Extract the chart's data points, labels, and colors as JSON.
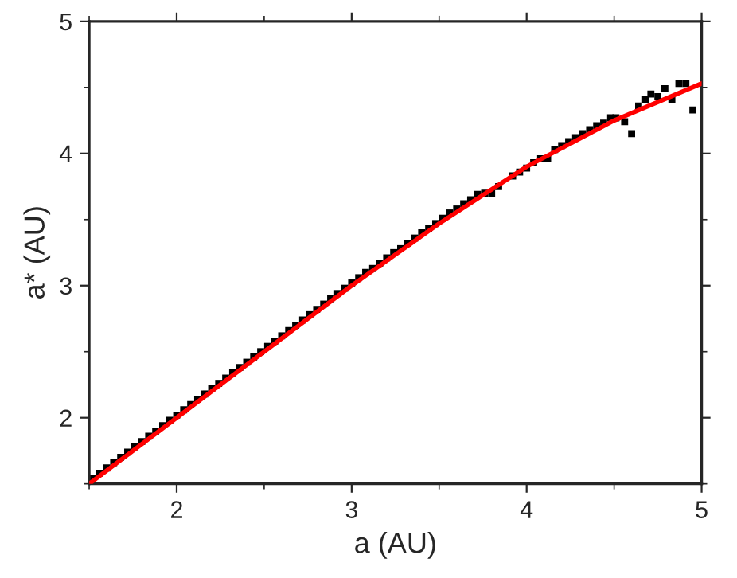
{
  "chart_data": {
    "type": "scatter",
    "xlabel": "a (AU)",
    "ylabel": "a* (AU)",
    "xlim": [
      1.5,
      5
    ],
    "ylim": [
      1.5,
      5
    ],
    "xticks": [
      2,
      3,
      4,
      5
    ],
    "yticks": [
      2,
      3,
      4,
      5
    ],
    "grid": false,
    "legend": false,
    "series": [
      {
        "marker": "square",
        "color": "#000000",
        "x": [
          1.52,
          1.56,
          1.6,
          1.64,
          1.68,
          1.72,
          1.76,
          1.8,
          1.84,
          1.88,
          1.92,
          1.96,
          2.0,
          2.04,
          2.08,
          2.12,
          2.16,
          2.2,
          2.24,
          2.28,
          2.32,
          2.36,
          2.4,
          2.44,
          2.48,
          2.52,
          2.56,
          2.6,
          2.64,
          2.68,
          2.72,
          2.76,
          2.8,
          2.84,
          2.88,
          2.92,
          2.96,
          3.0,
          3.04,
          3.08,
          3.12,
          3.16,
          3.2,
          3.24,
          3.28,
          3.32,
          3.36,
          3.4,
          3.44,
          3.48,
          3.52,
          3.56,
          3.6,
          3.64,
          3.68,
          3.72,
          3.76,
          3.8,
          3.84,
          3.92,
          3.96,
          4.0,
          4.04,
          4.08,
          4.12,
          4.16,
          4.2,
          4.24,
          4.28,
          4.32,
          4.36,
          4.4,
          4.44,
          4.48,
          4.51,
          4.56,
          4.6,
          4.64,
          4.68,
          4.71,
          4.75,
          4.79,
          4.83,
          4.87,
          4.91,
          4.95
        ],
        "values": [
          1.54,
          1.58,
          1.62,
          1.66,
          1.7,
          1.74,
          1.78,
          1.82,
          1.86,
          1.9,
          1.94,
          1.98,
          2.02,
          2.06,
          2.1,
          2.14,
          2.18,
          2.22,
          2.26,
          2.3,
          2.34,
          2.38,
          2.42,
          2.46,
          2.5,
          2.54,
          2.58,
          2.62,
          2.66,
          2.7,
          2.74,
          2.78,
          2.82,
          2.86,
          2.9,
          2.94,
          2.98,
          3.02,
          3.06,
          3.1,
          3.13,
          3.17,
          3.21,
          3.25,
          3.28,
          3.32,
          3.36,
          3.4,
          3.43,
          3.47,
          3.51,
          3.55,
          3.58,
          3.62,
          3.65,
          3.69,
          3.7,
          3.7,
          3.75,
          3.83,
          3.86,
          3.89,
          3.93,
          3.96,
          3.96,
          4.03,
          4.06,
          4.09,
          4.12,
          4.15,
          4.18,
          4.21,
          4.23,
          4.27,
          4.27,
          4.24,
          4.15,
          4.36,
          4.41,
          4.45,
          4.43,
          4.49,
          4.41,
          4.53,
          4.53,
          4.33
        ]
      },
      {
        "type": "line",
        "marker": "none",
        "line_style": "solid",
        "color": "#ff0000",
        "x": [
          1.5,
          2,
          2.5,
          3,
          3.5,
          4,
          4.5,
          5
        ],
        "values": [
          1.5,
          2.0,
          2.5,
          3.0,
          3.47,
          3.9,
          4.25,
          4.53
        ]
      }
    ]
  }
}
